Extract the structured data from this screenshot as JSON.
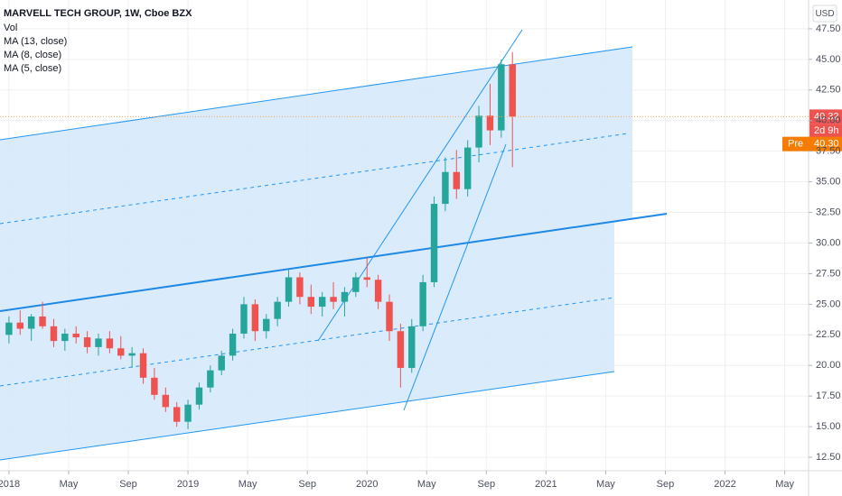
{
  "chart_data": {
    "type": "candlestick",
    "title": "MARVELL TECH GROUP, 1W, Cboe BZX",
    "indicators": [
      "Vol",
      "MA (13, close)",
      "MA (8, close)",
      "MA (5, close)"
    ],
    "currency": "USD",
    "up_color": "#26a69a",
    "down_color": "#ef5350",
    "grid": true,
    "x": [
      0,
      0.75,
      1.5,
      2.25,
      3,
      3.75,
      4.5,
      5.25,
      6,
      6.75,
      7.5,
      8.25,
      9,
      9.75,
      10.5,
      11.25,
      12,
      12.75,
      13.5,
      14.25,
      15,
      15.75,
      16.5,
      17.25,
      18,
      18.75,
      19.5,
      20.25,
      21,
      21.75,
      22.5,
      23.25,
      24,
      24.75,
      25.5,
      26.25,
      27,
      27.75,
      28.5,
      29.25,
      30,
      30.75,
      31.5,
      32.25,
      33,
      33.75
    ],
    "open": [
      22.5,
      23.5,
      23.0,
      24.0,
      23.2,
      22.0,
      22.6,
      22.3,
      21.5,
      22.2,
      21.4,
      20.8,
      21.0,
      19.0,
      17.6,
      16.6,
      15.4,
      16.8,
      18.2,
      19.6,
      20.8,
      22.6,
      25.0,
      22.8,
      23.8,
      25.2,
      27.2,
      25.6,
      24.8,
      25.6,
      25.2,
      26.0,
      27.2,
      27.0,
      25.2,
      22.8,
      19.8,
      23.2,
      26.8,
      33.2,
      35.8,
      34.4,
      37.8,
      40.4,
      39.2,
      44.6
    ],
    "high": [
      24.0,
      24.5,
      24.2,
      25.2,
      23.8,
      23.0,
      23.2,
      22.8,
      22.6,
      22.8,
      22.4,
      21.5,
      21.4,
      19.8,
      18.2,
      17.0,
      17.2,
      18.6,
      20.0,
      21.2,
      23.0,
      25.6,
      25.4,
      24.2,
      25.6,
      27.8,
      27.6,
      26.6,
      26.0,
      26.8,
      26.4,
      27.6,
      28.8,
      27.4,
      25.8,
      23.4,
      23.8,
      27.4,
      33.8,
      37.0,
      37.6,
      38.4,
      41.2,
      43.0,
      45.0,
      45.6
    ],
    "low": [
      21.8,
      22.5,
      22.0,
      23.0,
      21.5,
      21.2,
      21.8,
      21.0,
      20.8,
      21.0,
      20.5,
      19.8,
      18.5,
      17.2,
      16.2,
      15.0,
      14.8,
      16.4,
      17.8,
      19.2,
      20.4,
      22.2,
      22.0,
      22.2,
      23.2,
      24.8,
      25.0,
      24.2,
      24.0,
      24.6,
      24.0,
      25.6,
      26.4,
      24.6,
      22.0,
      18.2,
      19.4,
      22.8,
      26.4,
      32.6,
      33.6,
      33.8,
      36.6,
      38.0,
      38.6,
      36.2
    ],
    "close": [
      23.5,
      23.0,
      24.0,
      23.2,
      22.0,
      22.6,
      22.3,
      21.5,
      22.2,
      21.4,
      20.8,
      21.0,
      19.0,
      17.6,
      16.6,
      15.4,
      16.8,
      18.2,
      19.6,
      20.8,
      22.6,
      25.0,
      22.8,
      23.8,
      25.2,
      27.2,
      25.6,
      24.8,
      25.6,
      25.2,
      26.0,
      27.2,
      27.0,
      25.2,
      22.8,
      19.8,
      23.2,
      26.8,
      33.2,
      35.8,
      34.4,
      37.8,
      40.4,
      39.2,
      44.6,
      40.32
    ],
    "xlim": [
      -0.6,
      53.6
    ],
    "xticks": [
      {
        "value": 0,
        "label": "2018"
      },
      {
        "value": 4,
        "label": "May"
      },
      {
        "value": 8,
        "label": "Sep"
      },
      {
        "value": 12,
        "label": "2019"
      },
      {
        "value": 16,
        "label": "May"
      },
      {
        "value": 20,
        "label": "Sep"
      },
      {
        "value": 24,
        "label": "2020"
      },
      {
        "value": 28,
        "label": "May"
      },
      {
        "value": 32,
        "label": "Sep"
      },
      {
        "value": 36,
        "label": "2021"
      },
      {
        "value": 40,
        "label": "May"
      },
      {
        "value": 44,
        "label": "Sep"
      },
      {
        "value": 48,
        "label": "2022"
      },
      {
        "value": 52,
        "label": "May"
      }
    ],
    "ylim": [
      11.4,
      49.85
    ],
    "yticks": [
      {
        "value": 12.5,
        "label": "12.50"
      },
      {
        "value": 15,
        "label": "15.00"
      },
      {
        "value": 17.5,
        "label": "17.50"
      },
      {
        "value": 20,
        "label": "20.00"
      },
      {
        "value": 22.5,
        "label": "22.50"
      },
      {
        "value": 25,
        "label": "25.00"
      },
      {
        "value": 27.5,
        "label": "27.50"
      },
      {
        "value": 30,
        "label": "30.00"
      },
      {
        "value": 32.5,
        "label": "32.50"
      },
      {
        "value": 35,
        "label": "35.00"
      },
      {
        "value": 37.5,
        "label": "37.50"
      },
      {
        "value": 40,
        "label": "40.00"
      },
      {
        "value": 42.5,
        "label": "42.50"
      },
      {
        "value": 45,
        "label": "45.00"
      },
      {
        "value": 47.5,
        "label": "47.50"
      }
    ],
    "last_price": 40.32,
    "countdown": "2d 9h",
    "pre_market": {
      "name": "Pre",
      "price": {
        "value": 40.3,
        "label": "40.30"
      }
    }
  }
}
